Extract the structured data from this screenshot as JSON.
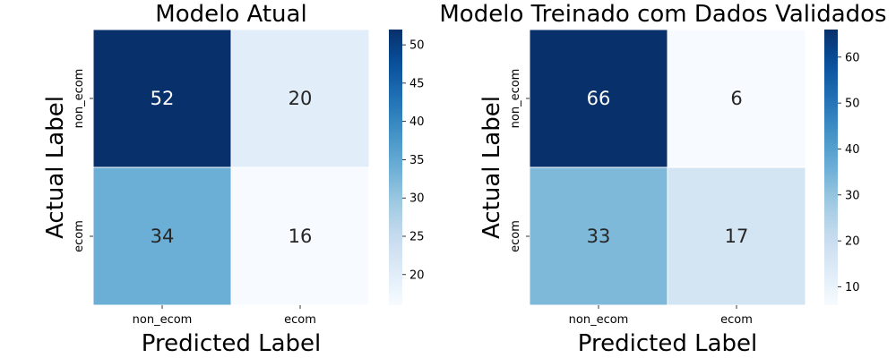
{
  "chart_data": [
    {
      "type": "heatmap",
      "title": "Modelo Atual",
      "xlabel": "Predicted Label",
      "ylabel": "Actual Label",
      "x_categories": [
        "non_ecom",
        "ecom"
      ],
      "y_categories": [
        "non_ecom",
        "ecom"
      ],
      "values": [
        [
          52,
          20
        ],
        [
          34,
          16
        ]
      ],
      "cell_labels": [
        [
          "52",
          "20"
        ],
        [
          "34",
          "16"
        ]
      ],
      "colormap": "Blues",
      "colorbar": {
        "min": 16,
        "max": 52,
        "ticks": [
          20,
          25,
          30,
          35,
          40,
          45,
          50
        ]
      }
    },
    {
      "type": "heatmap",
      "title": "Modelo Treinado com Dados Validados",
      "xlabel": "Predicted Label",
      "ylabel": "Actual Label",
      "x_categories": [
        "non_ecom",
        "ecom"
      ],
      "y_categories": [
        "non_ecom",
        "ecom"
      ],
      "values": [
        [
          66,
          6
        ],
        [
          33,
          17
        ]
      ],
      "cell_labels": [
        [
          "66",
          "6"
        ],
        [
          "33",
          "17"
        ]
      ],
      "colormap": "Blues",
      "colorbar": {
        "min": 6,
        "max": 66,
        "ticks": [
          10,
          20,
          30,
          40,
          50,
          60
        ]
      }
    }
  ]
}
